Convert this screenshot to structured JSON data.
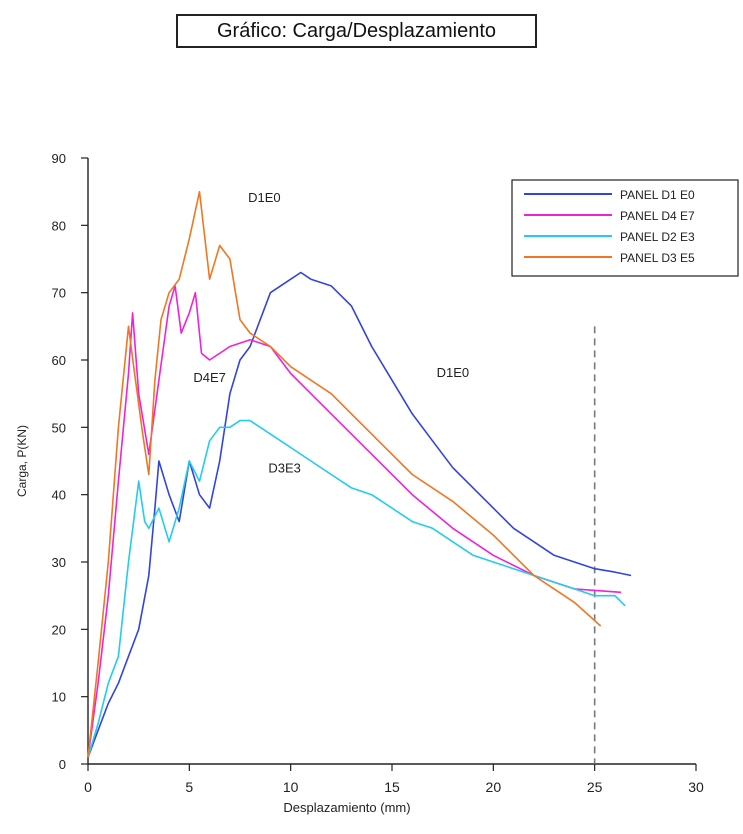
{
  "title": "Gráfico: Carga/Desplazamiento",
  "chart_data": {
    "type": "line",
    "xlabel": "Desplazamiento (mm)",
    "ylabel": "Carga, P(KN)",
    "xlim": [
      0,
      30
    ],
    "ylim": [
      0,
      90
    ],
    "xticks": [
      0,
      5,
      10,
      15,
      20,
      25,
      30
    ],
    "yticks": [
      0,
      10,
      20,
      30,
      40,
      50,
      60,
      70,
      80,
      90
    ],
    "xtick_labels": [
      "0",
      "5",
      "10",
      "15",
      "20",
      "25",
      "30"
    ],
    "ytick_labels": [
      "0",
      "10",
      "20",
      "30",
      "40",
      "50",
      "60",
      "70",
      "80",
      "90"
    ],
    "grid": false,
    "legend_position": "top-right",
    "reference_line": {
      "x": 25,
      "style": "dashed",
      "color": "#777777"
    },
    "series": [
      {
        "name": "PANEL D1 E0",
        "color": "#3344dd",
        "x": [
          0,
          0.5,
          1,
          1.5,
          2,
          2.5,
          3,
          3.3,
          3.5,
          4,
          4.5,
          5,
          5.5,
          6,
          6.5,
          7,
          7.5,
          8,
          9,
          10,
          10.5,
          11,
          12,
          13,
          14,
          15,
          16,
          17,
          18,
          19,
          20,
          21,
          22,
          23,
          24,
          25,
          26,
          26.8
        ],
        "y": [
          1,
          5,
          9,
          12,
          16,
          20,
          28,
          38,
          45,
          40,
          36,
          45,
          40,
          38,
          45,
          55,
          60,
          62,
          70,
          72,
          73,
          72,
          71,
          68,
          62,
          57,
          52,
          48,
          44,
          41,
          38,
          35,
          33,
          31,
          30,
          29,
          28.5,
          28
        ]
      },
      {
        "name": "PANEL D4 E7",
        "color": "#ee22dd",
        "x": [
          0,
          0.5,
          1,
          1.5,
          2,
          2.2,
          2.5,
          3,
          3.5,
          4,
          4.3,
          4.6,
          5,
          5.3,
          5.6,
          6,
          7,
          8,
          9,
          10,
          12,
          14,
          16,
          18,
          20,
          22,
          24,
          26.3
        ],
        "y": [
          1,
          12,
          25,
          42,
          58,
          67,
          55,
          46,
          57,
          68,
          71,
          64,
          67,
          70,
          61,
          60,
          62,
          63,
          62,
          58,
          52,
          46,
          40,
          35,
          31,
          28,
          26,
          25.5
        ]
      },
      {
        "name": "PANEL D2 E3",
        "color": "#22ccee",
        "x": [
          0,
          0.5,
          1,
          1.5,
          2,
          2.5,
          2.8,
          3,
          3.5,
          4,
          4.5,
          5,
          5.5,
          6,
          6.5,
          7,
          7.5,
          8,
          9,
          10,
          11,
          12,
          13,
          14,
          15,
          16,
          17,
          18,
          19,
          20,
          21,
          22,
          23,
          24,
          25,
          26,
          26.5
        ],
        "y": [
          1,
          6,
          12,
          16,
          30,
          42,
          36,
          35,
          38,
          33,
          38,
          45,
          42,
          48,
          50,
          50,
          51,
          51,
          49,
          47,
          45,
          43,
          41,
          40,
          38,
          36,
          35,
          33,
          31,
          30,
          29,
          28,
          27,
          26,
          25,
          25,
          23.5
        ]
      },
      {
        "name": "PANEL D3 E5",
        "color": "#ee7722",
        "x": [
          0,
          0.5,
          1,
          1.5,
          2,
          2.3,
          2.7,
          3,
          3.3,
          3.6,
          4,
          4.5,
          5,
          5.5,
          6,
          6.5,
          7,
          7.5,
          8,
          9,
          10,
          12,
          14,
          16,
          18,
          20,
          21,
          22,
          23,
          24,
          25.3
        ],
        "y": [
          1,
          15,
          30,
          50,
          65,
          58,
          49,
          43,
          57,
          66,
          70,
          72,
          78,
          85,
          72,
          77,
          75,
          66,
          64,
          62,
          59,
          55,
          49,
          43,
          39,
          34,
          31,
          28,
          26,
          24,
          20.5
        ]
      }
    ],
    "annotations": [
      {
        "text": "D1E0",
        "x": 7.9,
        "y": 83.5
      },
      {
        "text": "D1E0",
        "x": 17.2,
        "y": 57.5
      },
      {
        "text": "D4E7",
        "x": 5.2,
        "y": 56.7
      },
      {
        "text": "D3E3",
        "x": 8.9,
        "y": 43.3
      }
    ]
  }
}
